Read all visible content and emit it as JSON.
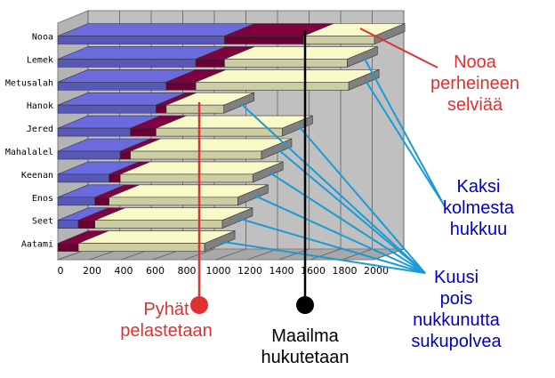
{
  "chart_data": {
    "type": "bar",
    "orientation": "horizontal",
    "stacked": true,
    "style": "3d",
    "categories": [
      "Nooa",
      "Lemek",
      "Metusalah",
      "Hanok",
      "Jered",
      "Mahalalel",
      "Keenan",
      "Enos",
      "Seet",
      "Aatami"
    ],
    "series": [
      {
        "color": "#6b6bdf",
        "values": [
          1056,
          874,
          687,
          622,
          460,
          395,
          325,
          235,
          130,
          0
        ]
      },
      {
        "color": "#800040",
        "values": [
          500,
          182,
          187,
          65,
          162,
          65,
          70,
          90,
          105,
          130
        ]
      },
      {
        "color": "#fafac8",
        "values": [
          450,
          777,
          969,
          365,
          800,
          830,
          840,
          815,
          807,
          800
        ]
      }
    ],
    "xlim": [
      0,
      2000
    ],
    "xticks": [
      0,
      200,
      400,
      600,
      800,
      1000,
      1200,
      1400,
      1600,
      1800,
      2000
    ],
    "grid": "vertical"
  },
  "annotations": {
    "nooa": {
      "text": "Nooa\nperheineen\nselviää",
      "color": "#e03030"
    },
    "kaksi": {
      "text": "Kaksi\nkolmesta\nhukkuu",
      "color": "#0000c8"
    },
    "kuusi": {
      "text": "Kuusi\npois\nnukkunutta\nsukupolvea",
      "color": "#0000c8"
    },
    "pyhat": {
      "text": "Pyhät\npelastetaan",
      "color": "#e03030"
    },
    "maailma": {
      "text": "Maailma\nhukutetaan",
      "color": "#000000"
    }
  },
  "colors": {
    "pointer_blue": "#1a9ad6",
    "pointer_red": "#e03030",
    "pointer_black": "#000000"
  }
}
